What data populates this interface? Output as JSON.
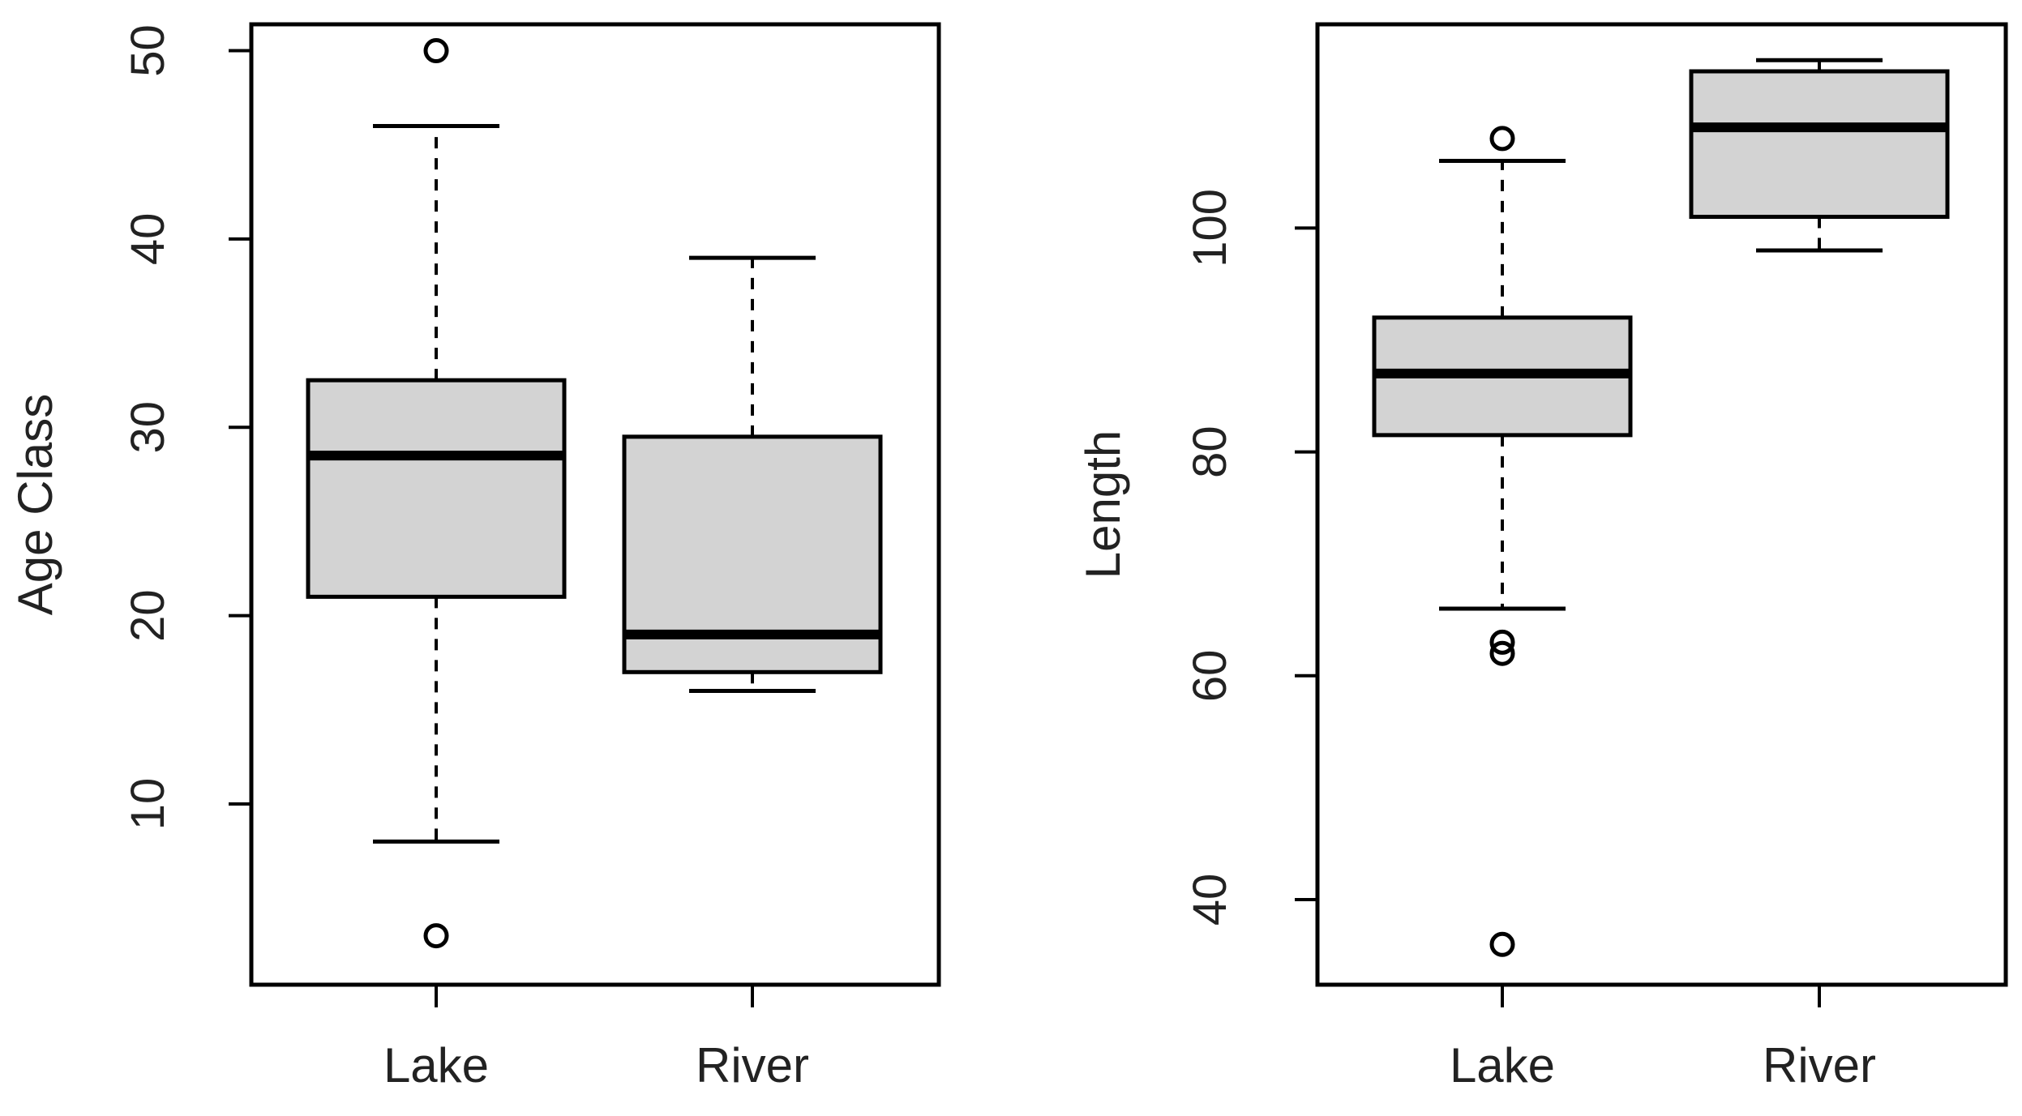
{
  "colors": {
    "box_fill": "#d3d3d3",
    "stroke": "#000000",
    "text": "#222222"
  },
  "chart_data": [
    {
      "type": "box",
      "xlabel": "",
      "ylabel": "Age Class",
      "ylim": [
        0.4,
        51.4
      ],
      "yticks": [
        10,
        20,
        30,
        40,
        50
      ],
      "categories": [
        "Lake",
        "River"
      ],
      "boxes": [
        {
          "category": "Lake",
          "whisker_low": 8,
          "q1": 21,
          "median": 28.5,
          "q3": 32.5,
          "whisker_high": 46,
          "outliers": [
            50,
            3
          ]
        },
        {
          "category": "River",
          "whisker_low": 16,
          "q1": 17,
          "median": 19,
          "q3": 29.5,
          "whisker_high": 39,
          "outliers": []
        }
      ],
      "grid": false,
      "legend": "none"
    },
    {
      "type": "box",
      "xlabel": "",
      "ylabel": "Length",
      "ylim": [
        32.4,
        118.2
      ],
      "yticks": [
        40,
        60,
        80,
        100
      ],
      "categories": [
        "Lake",
        "River"
      ],
      "boxes": [
        {
          "category": "Lake",
          "whisker_low": 66,
          "q1": 81.5,
          "median": 87,
          "q3": 92,
          "whisker_high": 106,
          "outliers": [
            108,
            63,
            62,
            36
          ]
        },
        {
          "category": "River",
          "whisker_low": 98,
          "q1": 101,
          "median": 109,
          "q3": 114,
          "whisker_high": 115,
          "outliers": []
        }
      ],
      "grid": false,
      "legend": "none"
    }
  ]
}
